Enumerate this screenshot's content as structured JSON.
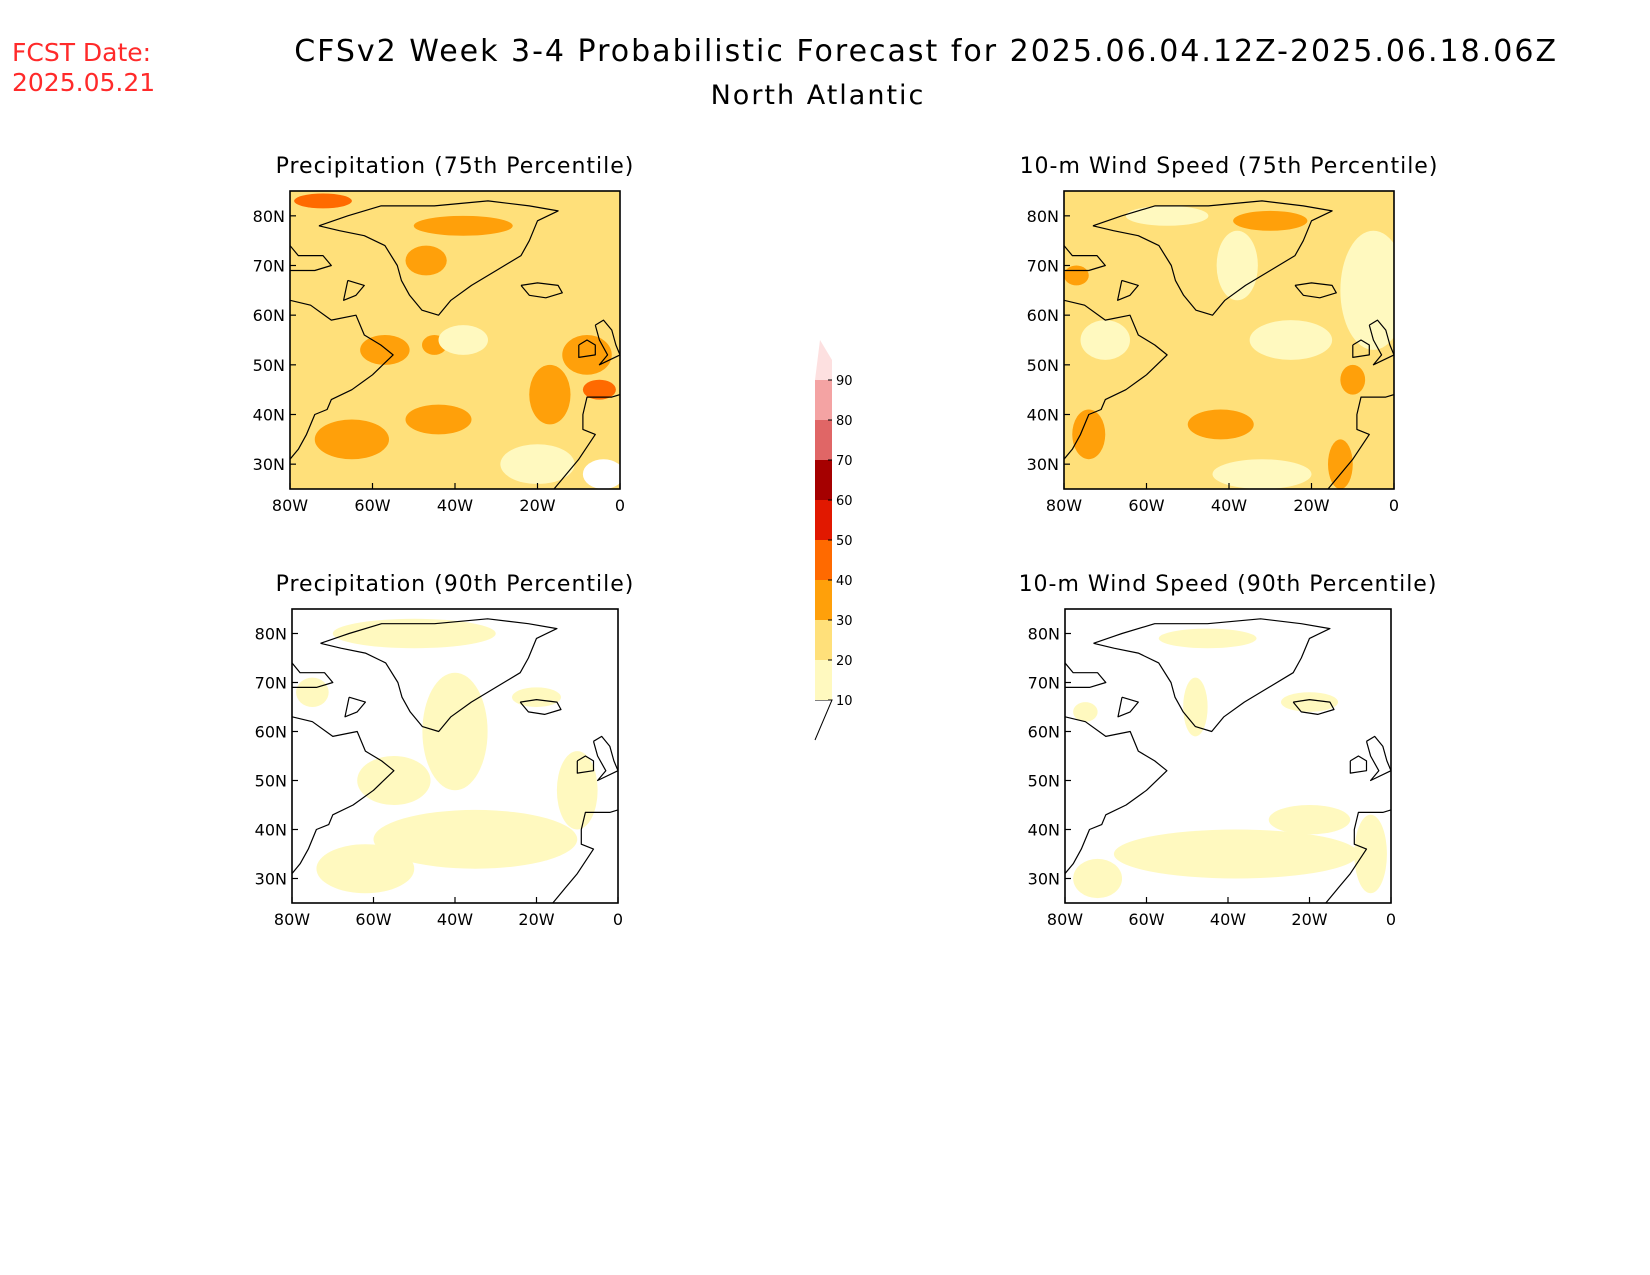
{
  "header": {
    "fcst_label": "FCST Date:",
    "fcst_date": "2025.05.21",
    "title": "CFSv2 Week 3-4 Probabilistic Forecast for 2025.06.04.12Z-2025.06.18.06Z",
    "subtitle": "North Atlantic"
  },
  "axes": {
    "lat_ticks": [
      "80N",
      "70N",
      "60N",
      "50N",
      "40N",
      "30N"
    ],
    "lon_ticks": [
      "80W",
      "60W",
      "40W",
      "20W",
      "0"
    ],
    "lat_range": [
      25,
      85
    ],
    "lon_range": [
      -80,
      0
    ]
  },
  "colorbar": {
    "levels": [
      "10",
      "20",
      "30",
      "40",
      "50",
      "60",
      "70",
      "80",
      "90"
    ],
    "colors": [
      "#fff9bf",
      "#ffe07a",
      "#ffa00a",
      "#ff6a00",
      "#e11800",
      "#a50000",
      "#e06666",
      "#f4a3a3",
      "#fde0e0"
    ]
  },
  "panels": [
    {
      "id": "precip-75",
      "title": "Precipitation (75th Percentile)",
      "base": "#ffe07a",
      "patches": [
        {
          "lon": -72,
          "lat": 83,
          "rx": 7,
          "ry": 1.5,
          "color": "#ff6a00"
        },
        {
          "lon": -47,
          "lat": 71,
          "rx": 5,
          "ry": 3,
          "color": "#ffa00a"
        },
        {
          "lon": -38,
          "lat": 78,
          "rx": 12,
          "ry": 2,
          "color": "#ffa00a"
        },
        {
          "lon": -57,
          "lat": 53,
          "rx": 6,
          "ry": 3,
          "color": "#ffa00a"
        },
        {
          "lon": -45,
          "lat": 54,
          "rx": 3,
          "ry": 2,
          "color": "#ffa00a"
        },
        {
          "lon": -65,
          "lat": 35,
          "rx": 9,
          "ry": 4,
          "color": "#ffa00a"
        },
        {
          "lon": -44,
          "lat": 39,
          "rx": 8,
          "ry": 3,
          "color": "#ffa00a"
        },
        {
          "lon": -17,
          "lat": 44,
          "rx": 5,
          "ry": 6,
          "color": "#ffa00a"
        },
        {
          "lon": -8,
          "lat": 52,
          "rx": 6,
          "ry": 4,
          "color": "#ffa00a"
        },
        {
          "lon": -5,
          "lat": 45,
          "rx": 4,
          "ry": 2,
          "color": "#ff6a00"
        },
        {
          "lon": -38,
          "lat": 55,
          "rx": 6,
          "ry": 3,
          "color": "#fff9bf"
        },
        {
          "lon": -20,
          "lat": 30,
          "rx": 9,
          "ry": 4,
          "color": "#fff9bf"
        },
        {
          "lon": -4,
          "lat": 28,
          "rx": 5,
          "ry": 3,
          "color": "#ffffff"
        }
      ]
    },
    {
      "id": "wind-75",
      "title": "10-m Wind Speed (75th Percentile)",
      "base": "#ffe07a",
      "patches": [
        {
          "lon": -55,
          "lat": 80,
          "rx": 10,
          "ry": 2,
          "color": "#fff9bf"
        },
        {
          "lon": -38,
          "lat": 70,
          "rx": 5,
          "ry": 7,
          "color": "#fff9bf"
        },
        {
          "lon": -30,
          "lat": 79,
          "rx": 9,
          "ry": 2,
          "color": "#ffa00a"
        },
        {
          "lon": -5,
          "lat": 65,
          "rx": 8,
          "ry": 12,
          "color": "#fff9bf"
        },
        {
          "lon": -70,
          "lat": 55,
          "rx": 6,
          "ry": 4,
          "color": "#fff9bf"
        },
        {
          "lon": -25,
          "lat": 55,
          "rx": 10,
          "ry": 4,
          "color": "#fff9bf"
        },
        {
          "lon": -42,
          "lat": 38,
          "rx": 8,
          "ry": 3,
          "color": "#ffa00a"
        },
        {
          "lon": -74,
          "lat": 36,
          "rx": 4,
          "ry": 5,
          "color": "#ffa00a"
        },
        {
          "lon": -10,
          "lat": 47,
          "rx": 3,
          "ry": 3,
          "color": "#ffa00a"
        },
        {
          "lon": -13,
          "lat": 30,
          "rx": 3,
          "ry": 5,
          "color": "#ffa00a"
        },
        {
          "lon": -77,
          "lat": 68,
          "rx": 3,
          "ry": 2,
          "color": "#ffa00a"
        },
        {
          "lon": -32,
          "lat": 28,
          "rx": 12,
          "ry": 3,
          "color": "#fff9bf"
        }
      ]
    },
    {
      "id": "precip-90",
      "title": "Precipitation (90th Percentile)",
      "base": "#ffffff",
      "patches": [
        {
          "lon": -50,
          "lat": 80,
          "rx": 20,
          "ry": 3,
          "color": "#fff9bf"
        },
        {
          "lon": -40,
          "lat": 60,
          "rx": 8,
          "ry": 12,
          "color": "#fff9bf"
        },
        {
          "lon": -55,
          "lat": 50,
          "rx": 9,
          "ry": 5,
          "color": "#fff9bf"
        },
        {
          "lon": -35,
          "lat": 38,
          "rx": 25,
          "ry": 6,
          "color": "#fff9bf"
        },
        {
          "lon": -62,
          "lat": 32,
          "rx": 12,
          "ry": 5,
          "color": "#fff9bf"
        },
        {
          "lon": -10,
          "lat": 48,
          "rx": 5,
          "ry": 8,
          "color": "#fff9bf"
        },
        {
          "lon": -20,
          "lat": 67,
          "rx": 6,
          "ry": 2,
          "color": "#fff9bf"
        },
        {
          "lon": -75,
          "lat": 68,
          "rx": 4,
          "ry": 3,
          "color": "#fff9bf"
        }
      ]
    },
    {
      "id": "wind-90",
      "title": "10-m Wind Speed (90th Percentile)",
      "base": "#ffffff",
      "patches": [
        {
          "lon": -45,
          "lat": 79,
          "rx": 12,
          "ry": 2,
          "color": "#fff9bf"
        },
        {
          "lon": -48,
          "lat": 65,
          "rx": 3,
          "ry": 6,
          "color": "#fff9bf"
        },
        {
          "lon": -20,
          "lat": 66,
          "rx": 7,
          "ry": 2,
          "color": "#fff9bf"
        },
        {
          "lon": -38,
          "lat": 35,
          "rx": 30,
          "ry": 5,
          "color": "#fff9bf"
        },
        {
          "lon": -20,
          "lat": 42,
          "rx": 10,
          "ry": 3,
          "color": "#fff9bf"
        },
        {
          "lon": -5,
          "lat": 35,
          "rx": 4,
          "ry": 8,
          "color": "#fff9bf"
        },
        {
          "lon": -72,
          "lat": 30,
          "rx": 6,
          "ry": 4,
          "color": "#fff9bf"
        },
        {
          "lon": -75,
          "lat": 64,
          "rx": 3,
          "ry": 2,
          "color": "#fff9bf"
        }
      ]
    }
  ]
}
